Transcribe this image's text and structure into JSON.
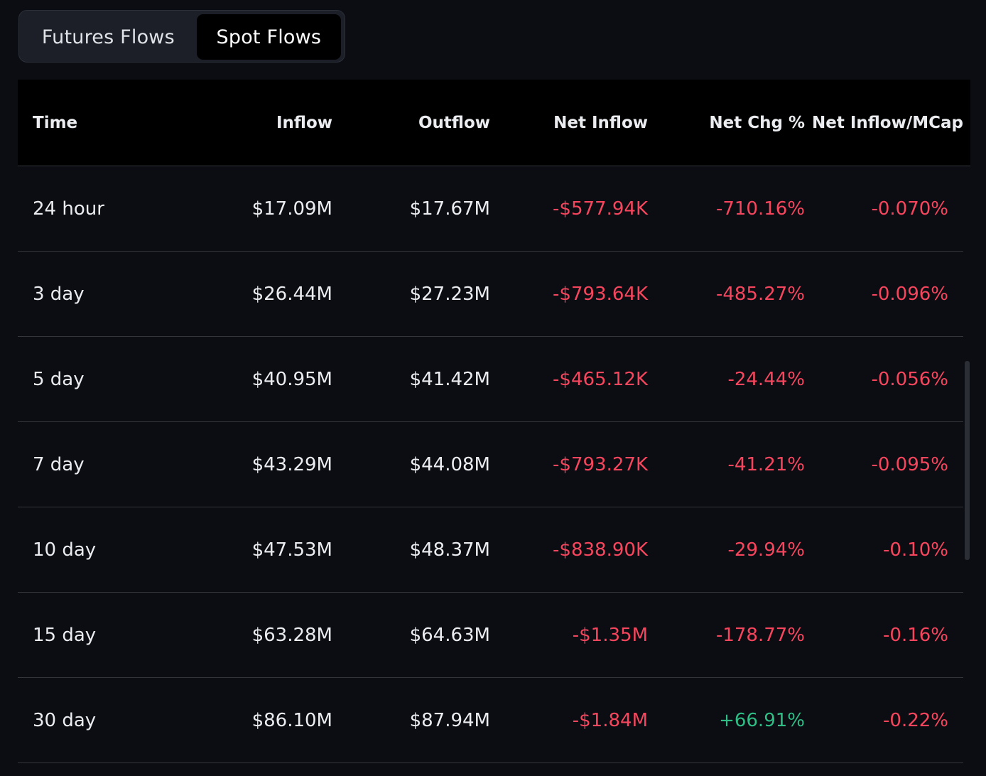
{
  "tabs": [
    {
      "label": "Futures Flows",
      "active": false
    },
    {
      "label": "Spot Flows",
      "active": true
    }
  ],
  "table": {
    "columns": [
      "Time",
      "Inflow",
      "Outflow",
      "Net Inflow",
      "Net Chg %",
      "Net Inflow/MCap"
    ],
    "rows": [
      {
        "time": "24 hour",
        "inflow": "$17.09M",
        "outflow": "$17.67M",
        "net_inflow": "-$577.94K",
        "net_chg": "-710.16%",
        "net_mcap": "-0.070%"
      },
      {
        "time": "3 day",
        "inflow": "$26.44M",
        "outflow": "$27.23M",
        "net_inflow": "-$793.64K",
        "net_chg": "-485.27%",
        "net_mcap": "-0.096%"
      },
      {
        "time": "5 day",
        "inflow": "$40.95M",
        "outflow": "$41.42M",
        "net_inflow": "-$465.12K",
        "net_chg": "-24.44%",
        "net_mcap": "-0.056%"
      },
      {
        "time": "7 day",
        "inflow": "$43.29M",
        "outflow": "$44.08M",
        "net_inflow": "-$793.27K",
        "net_chg": "-41.21%",
        "net_mcap": "-0.095%"
      },
      {
        "time": "10 day",
        "inflow": "$47.53M",
        "outflow": "$48.37M",
        "net_inflow": "-$838.90K",
        "net_chg": "-29.94%",
        "net_mcap": "-0.10%"
      },
      {
        "time": "15 day",
        "inflow": "$63.28M",
        "outflow": "$64.63M",
        "net_inflow": "-$1.35M",
        "net_chg": "-178.77%",
        "net_mcap": "-0.16%"
      },
      {
        "time": "30 day",
        "inflow": "$86.10M",
        "outflow": "$87.94M",
        "net_inflow": "-$1.84M",
        "net_chg": "+66.91%",
        "net_mcap": "-0.22%"
      }
    ]
  },
  "colors": {
    "background": "#0c0d13",
    "negative": "#f6465d",
    "positive": "#2ebd85",
    "text": "#eaecef"
  }
}
